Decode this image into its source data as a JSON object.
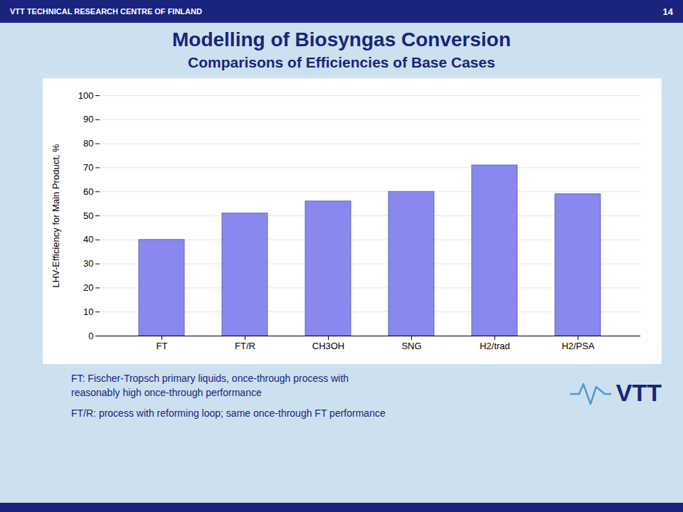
{
  "chart_data": {
    "type": "bar",
    "title": "Modelling of Biosyngas Conversion",
    "subtitle": "Comparisons of Efficiencies of Base Cases",
    "categories": [
      "FT",
      "FT/R",
      "CH3OH",
      "SNG",
      "H2/trad",
      "H2/PSA"
    ],
    "values": [
      40,
      51,
      56,
      60,
      71,
      59
    ],
    "color": "#8888ee",
    "ylabel": "LHV-Efficiency for Main Product, %",
    "ylim": [
      0,
      100
    ],
    "yticks": [
      0,
      10,
      20,
      30,
      40,
      50,
      60,
      70,
      80,
      90,
      100
    ],
    "grid": true,
    "annotations": [
      "VTT TECHNICAL RESEARCH CENTRE OF FINLAND",
      "14",
      "FT:  Fischer-Tropsch primary liquids, once-through process with",
      "reasonably high once-through performance",
      "FT/R: process with reforming loop; same once-through FT performance",
      "VTT"
    ]
  }
}
